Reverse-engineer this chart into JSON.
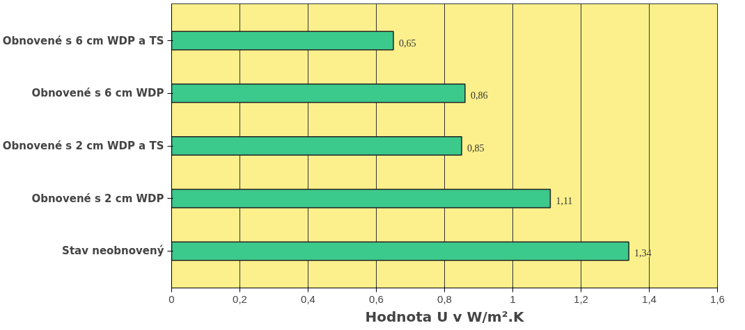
{
  "chart_data": {
    "type": "bar",
    "orientation": "horizontal",
    "xlabel": "Hodnota U v W/m².K",
    "categories": [
      "Obnovené s 6 cm WDP a TS",
      "Obnovené s 6 cm WDP",
      "Obnovené s 2 cm WDP a TS",
      "Obnovené s 2 cm WDP",
      "Stav neobnovený"
    ],
    "values": [
      0.65,
      0.86,
      0.85,
      1.11,
      1.34
    ],
    "value_labels": [
      "0,65",
      "0,86",
      "0,85",
      "1,11",
      "1,34"
    ],
    "color": "#3cc98c",
    "xlim": [
      0,
      1.6
    ],
    "xticks": [
      0,
      {
        "value": 0.2,
        "label": "0,2"
      },
      {
        "value": 0.4,
        "label": "0,4"
      },
      {
        "value": 0.6,
        "label": "0,6"
      },
      {
        "value": 0.8,
        "label": "0,8"
      },
      1,
      {
        "value": 1.2,
        "label": "1,2"
      },
      {
        "value": 1.4,
        "label": "1,4"
      },
      {
        "value": 1.6,
        "label": "1,6"
      }
    ],
    "grid": "x"
  }
}
